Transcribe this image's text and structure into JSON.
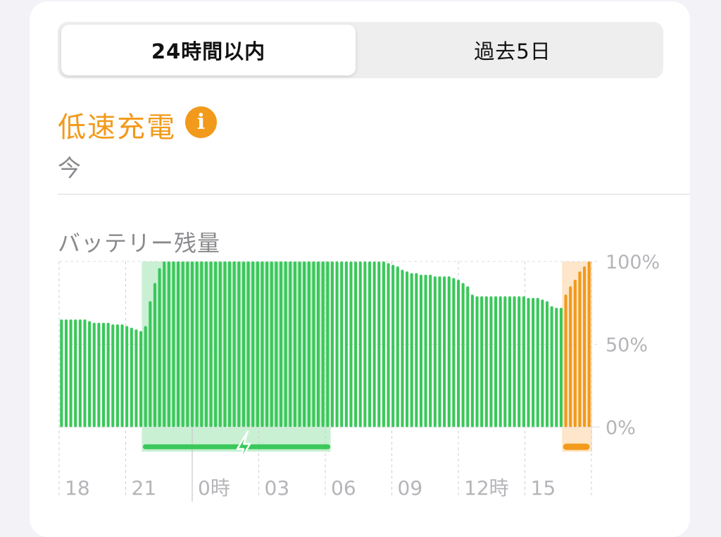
{
  "segmented_control": {
    "tabs": [
      {
        "label": "24時間以内",
        "active": true
      },
      {
        "label": "過去5日",
        "active": false
      }
    ]
  },
  "status": {
    "title": "低速充電",
    "title_color": "#f29a1b",
    "info_icon": "info-icon",
    "info_glyph": "i",
    "time": "今"
  },
  "battery_section_label": "バッテリー残量",
  "colors": {
    "bar": "#3ac85a",
    "charging_highlight": "#c9f0d3",
    "low_speed_bar": "#f29a1b",
    "low_speed_highlight": "#fde6c9"
  },
  "charging_icon": "lightning-bolt-icon",
  "chart_data": {
    "type": "bar",
    "title": "バッテリー残量",
    "y_ticks": [
      "100%",
      "50%",
      "0%"
    ],
    "ylim": [
      0,
      100
    ],
    "x_ticks": [
      "18",
      "21",
      "0時",
      "03",
      "06",
      "09",
      "12時",
      "15"
    ],
    "grid": true,
    "series": [
      {
        "values": [
          65,
          65,
          65,
          65,
          65,
          65,
          64,
          63,
          63,
          63,
          63,
          62,
          62,
          62,
          61,
          60,
          59,
          58,
          61,
          76,
          87,
          96,
          100,
          100,
          100,
          100,
          100,
          100,
          100,
          100,
          100,
          100,
          100,
          100,
          100,
          100,
          100,
          100,
          100,
          100,
          100,
          100,
          100,
          100,
          100,
          100,
          100,
          100,
          100,
          100,
          100,
          100,
          100,
          100,
          100,
          100,
          100,
          100,
          100,
          100,
          100,
          100,
          100,
          100,
          100,
          100,
          100,
          100,
          100,
          100,
          99,
          98,
          97,
          95,
          94,
          93,
          93,
          92,
          92,
          92,
          91,
          91,
          91,
          91,
          90,
          89,
          87,
          85,
          80,
          79,
          79,
          79,
          79,
          79,
          79,
          79,
          79,
          79,
          79,
          79,
          78,
          78,
          78,
          77,
          76,
          73,
          72,
          72,
          80,
          85,
          89,
          94,
          97,
          100
        ]
      }
    ],
    "charging_window": {
      "start_index": 18,
      "end_index": 58
    },
    "low_speed_window": {
      "start_index": 108,
      "end_index": 113
    }
  }
}
